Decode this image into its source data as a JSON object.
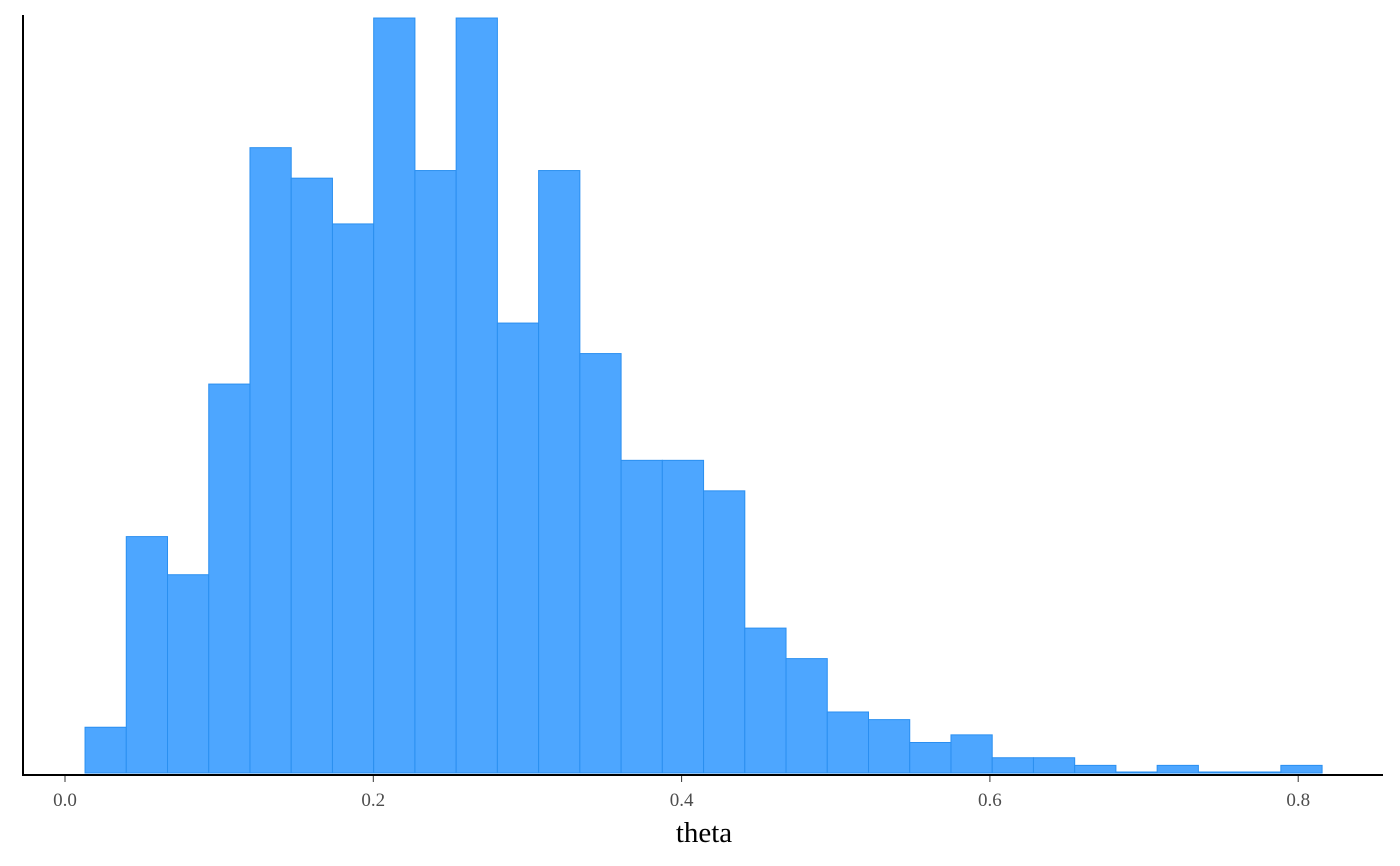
{
  "chart_data": {
    "type": "bar",
    "subtype": "histogram",
    "xlabel": "theta",
    "ylabel": "",
    "xlim": [
      -0.03,
      0.855
    ],
    "ylim": [
      0,
      99
    ],
    "x_ticks": [
      0.0,
      0.2,
      0.4,
      0.6,
      0.8
    ],
    "x_tick_labels": [
      "0.0",
      "0.2",
      "0.4",
      "0.6",
      "0.8"
    ],
    "y_axis_labels_shown": false,
    "grid": false,
    "bin_start": 0.013,
    "bin_width": 0.02675,
    "counts": [
      6,
      31,
      26,
      51,
      82,
      78,
      72,
      99,
      79,
      99,
      59,
      79,
      55,
      41,
      41,
      37,
      19,
      15,
      8,
      7,
      4,
      5,
      2,
      2,
      1,
      0,
      1,
      0,
      0,
      1
    ],
    "colors": {
      "fill": "#4da6ff",
      "stroke": "#2a8ff0",
      "axis": "#000000"
    }
  }
}
